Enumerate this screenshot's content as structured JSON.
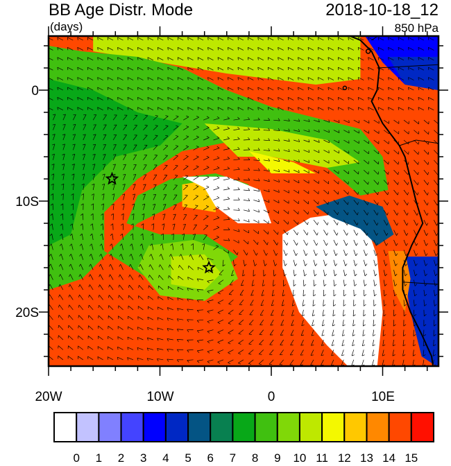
{
  "header": {
    "title": "BB Age Distr. Mode",
    "units": "(days)",
    "datetime": "2018-10-18_12",
    "level": "850 hPa"
  },
  "map": {
    "lon_range": [
      -20,
      15
    ],
    "lat_range": [
      -25,
      5
    ],
    "lon_ticks": [
      {
        "value": -20,
        "label": "20W"
      },
      {
        "value": -10,
        "label": "10W"
      },
      {
        "value": 0,
        "label": "0"
      },
      {
        "value": 10,
        "label": "10E"
      }
    ],
    "lat_ticks": [
      {
        "value": 0,
        "label": "0"
      },
      {
        "value": -10,
        "label": "10S"
      },
      {
        "value": -20,
        "label": "20S"
      }
    ],
    "markers": [
      {
        "type": "star",
        "lon": -14.3,
        "lat": -8.0
      },
      {
        "type": "star",
        "lon": -5.6,
        "lat": -16.0
      }
    ],
    "overlay": "wind-barbs"
  },
  "colorbar": {
    "labels": [
      "0",
      "1",
      "2",
      "3",
      "4",
      "5",
      "6",
      "7",
      "8",
      "9",
      "10",
      "11",
      "12",
      "13",
      "14",
      "15"
    ],
    "colors": [
      "#ffffff",
      "#c2c2ff",
      "#8080ff",
      "#4444ff",
      "#0000ff",
      "#0028c4",
      "#045484",
      "#088050",
      "#08a818",
      "#40c010",
      "#80d808",
      "#bee800",
      "#f4f800",
      "#ffc800",
      "#ff8800",
      "#ff4800",
      "#ff1000"
    ]
  }
}
